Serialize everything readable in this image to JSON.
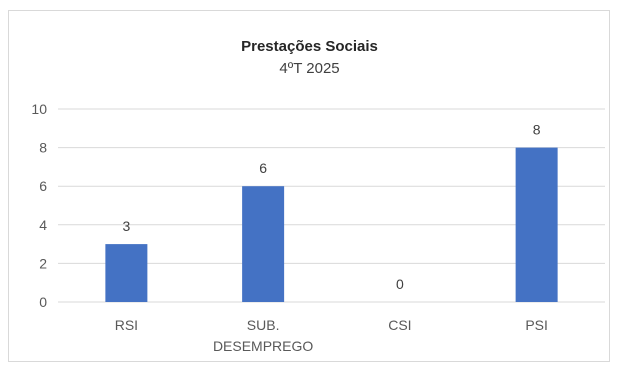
{
  "chart_data": {
    "type": "bar",
    "title": "Prestações Sociais",
    "subtitle": "4ºT 2025",
    "categories": [
      [
        "RSI"
      ],
      [
        "SUB.",
        "DESEMPREGO"
      ],
      [
        "CSI"
      ],
      [
        "PSI"
      ]
    ],
    "values": [
      3,
      6,
      0,
      8
    ],
    "data_labels": [
      "3",
      "6",
      "0",
      "8"
    ],
    "ylim": [
      0,
      10
    ],
    "yticks": [
      0,
      2,
      4,
      6,
      8,
      10
    ],
    "xlabel": "",
    "ylabel": "",
    "grid": true,
    "bar_color": "#4472c4",
    "grid_color": "#d9d9d9"
  }
}
